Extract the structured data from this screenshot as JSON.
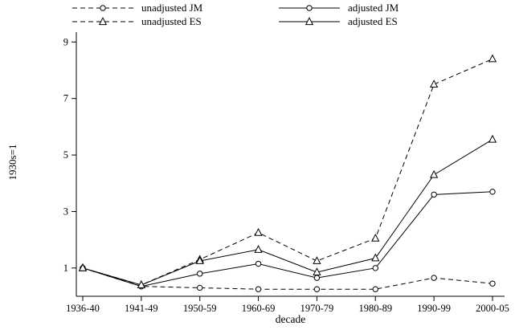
{
  "figure": {
    "background": "#ffffff",
    "line_color": "#000000"
  },
  "chart_data": {
    "type": "line",
    "title": "",
    "xlabel": "decade",
    "ylabel": "1930s=1",
    "categories": [
      "1936-40",
      "1941-49",
      "1950-59",
      "1960-69",
      "1970-79",
      "1980-89",
      "1990-99",
      "2000-05"
    ],
    "y_ticks": [
      1,
      3,
      5,
      7,
      9
    ],
    "ylim": [
      0,
      9.35
    ],
    "grid": false,
    "legend_position": "top",
    "series": [
      {
        "name": "unadjusted JM",
        "line_style": "dashed",
        "marker": "circle",
        "values": [
          1.0,
          0.35,
          0.3,
          0.25,
          0.25,
          0.25,
          0.65,
          0.45
        ]
      },
      {
        "name": "adjusted JM",
        "line_style": "solid",
        "marker": "circle",
        "values": [
          1.0,
          0.35,
          0.8,
          1.15,
          0.65,
          1.0,
          3.6,
          3.7
        ]
      },
      {
        "name": "unadjusted ES",
        "line_style": "dashed",
        "marker": "triangle",
        "values": [
          1.0,
          0.4,
          1.3,
          2.25,
          1.25,
          2.05,
          7.5,
          8.4
        ]
      },
      {
        "name": "adjusted ES",
        "line_style": "solid",
        "marker": "triangle",
        "values": [
          1.0,
          0.4,
          1.25,
          1.65,
          0.85,
          1.35,
          4.3,
          5.55
        ]
      }
    ]
  }
}
